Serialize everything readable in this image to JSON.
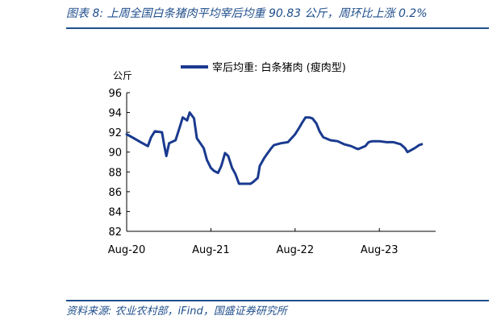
{
  "header": {
    "figure_title": "图表 8:  上周全国白条猪肉平均宰后均重 90.83 公斤，周环比上涨 0.2%"
  },
  "footer": {
    "source": "资料来源:  农业农村部，iFind，国盛证券研究所"
  },
  "chart_data": {
    "type": "line",
    "title": "",
    "xlabel": "",
    "ylabel": "公斤",
    "ylim": [
      82,
      96
    ],
    "yticks": [
      82,
      84,
      86,
      88,
      90,
      92,
      94,
      96
    ],
    "xlim": [
      "2020-08",
      "2024-04"
    ],
    "xticks": [
      {
        "value": "2020-08",
        "label": "Aug-20"
      },
      {
        "value": "2021-08",
        "label": "Aug-21"
      },
      {
        "value": "2022-08",
        "label": "Aug-22"
      },
      {
        "value": "2023-08",
        "label": "Aug-23"
      }
    ],
    "grid": false,
    "legend": "top-center",
    "colors": {
      "series": "#1a3a8f",
      "axis": "#000000",
      "accent": "#1f4e8c"
    },
    "series": [
      {
        "name": "宰后均重: 白条猪肉 (瘦肉型)",
        "points": [
          [
            "2020-08",
            91.8
          ],
          [
            "2020-09",
            91.4
          ],
          [
            "2020-10",
            91.0
          ],
          [
            "2020-11",
            90.6
          ],
          [
            "2020-11-15",
            91.5
          ],
          [
            "2020-12",
            92.1
          ],
          [
            "2021-01",
            92.0
          ],
          [
            "2021-01-10",
            90.8
          ],
          [
            "2021-01-20",
            89.6
          ],
          [
            "2021-02",
            90.9
          ],
          [
            "2021-03",
            91.2
          ],
          [
            "2021-03-20",
            92.6
          ],
          [
            "2021-04",
            93.5
          ],
          [
            "2021-04-20",
            93.2
          ],
          [
            "2021-05",
            94.0
          ],
          [
            "2021-05-20",
            93.4
          ],
          [
            "2021-06",
            91.4
          ],
          [
            "2021-07",
            90.4
          ],
          [
            "2021-07-15",
            89.2
          ],
          [
            "2021-08",
            88.4
          ],
          [
            "2021-08-15",
            88.1
          ],
          [
            "2021-09",
            87.9
          ],
          [
            "2021-09-15",
            88.6
          ],
          [
            "2021-10",
            89.9
          ],
          [
            "2021-10-15",
            89.6
          ],
          [
            "2021-11",
            88.4
          ],
          [
            "2021-11-15",
            87.8
          ],
          [
            "2021-12",
            86.8
          ],
          [
            "2022-01",
            86.8
          ],
          [
            "2022-01-20",
            86.8
          ],
          [
            "2022-02",
            87.0
          ],
          [
            "2022-02-20",
            87.4
          ],
          [
            "2022-03",
            88.6
          ],
          [
            "2022-03-20",
            89.4
          ],
          [
            "2022-04",
            89.8
          ],
          [
            "2022-04-20",
            90.4
          ],
          [
            "2022-05",
            90.7
          ],
          [
            "2022-06",
            90.9
          ],
          [
            "2022-07",
            91.0
          ],
          [
            "2022-08",
            91.8
          ],
          [
            "2022-08-20",
            92.5
          ],
          [
            "2022-09",
            93.0
          ],
          [
            "2022-09-15",
            93.5
          ],
          [
            "2022-10",
            93.5
          ],
          [
            "2022-10-15",
            93.4
          ],
          [
            "2022-11",
            92.9
          ],
          [
            "2022-11-15",
            92.1
          ],
          [
            "2022-12",
            91.5
          ],
          [
            "2023-01",
            91.2
          ],
          [
            "2023-02",
            91.1
          ],
          [
            "2023-03",
            90.8
          ],
          [
            "2023-04",
            90.6
          ],
          [
            "2023-04-20",
            90.4
          ],
          [
            "2023-05",
            90.3
          ],
          [
            "2023-06",
            90.6
          ],
          [
            "2023-06-15",
            91.0
          ],
          [
            "2023-07",
            91.1
          ],
          [
            "2023-08",
            91.1
          ],
          [
            "2023-09",
            91.0
          ],
          [
            "2023-10",
            91.0
          ],
          [
            "2023-11",
            90.8
          ],
          [
            "2023-11-20",
            90.4
          ],
          [
            "2023-12",
            90.0
          ],
          [
            "2024-01",
            90.4
          ],
          [
            "2024-01-20",
            90.7
          ],
          [
            "2024-02",
            90.8
          ]
        ]
      }
    ]
  }
}
